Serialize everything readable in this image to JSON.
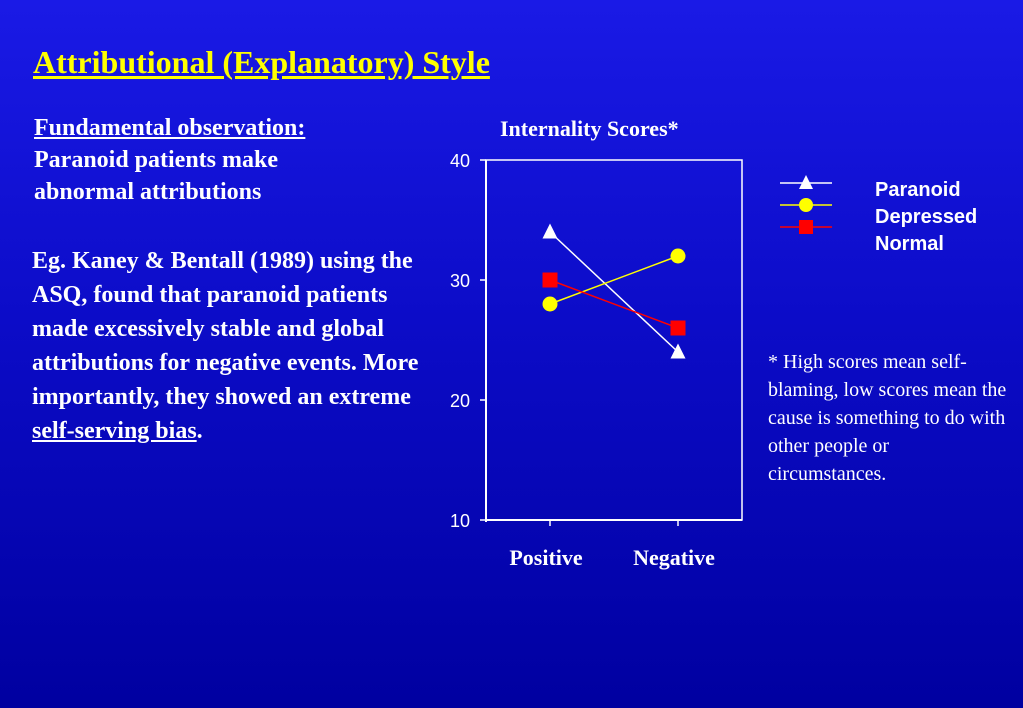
{
  "slide": {
    "title": "Attributional (Explanatory) Style",
    "fundamental_heading": "Fundamental observation:",
    "fundamental_line1": "Paranoid patients make",
    "fundamental_line2": "abnormal attributions",
    "body_text": "Eg. Kaney & Bentall (1989) using the ASQ, found that paranoid patients made excessively stable and global attributions for negative events. More importantly, they showed an extreme ",
    "body_underlined": "self-serving bias",
    "body_end": ".",
    "footnote": "* High scores mean self-blaming, low scores mean the cause is something to do with other people or circumstances."
  },
  "colors": {
    "background": "#0c0cc8",
    "title": "#ffff00",
    "paranoid": "#ffffff",
    "depressed": "#ffff00",
    "normal": "#ff0000"
  },
  "chart_data": {
    "type": "line",
    "title": "Internality Scores*",
    "categories": [
      "Positive",
      "Negative"
    ],
    "ylim": [
      10,
      40
    ],
    "yticks": [
      "10",
      "20",
      "30",
      "40"
    ],
    "legend_position": "top-right",
    "series": [
      {
        "name": "Paranoid",
        "values": [
          34,
          24
        ],
        "marker": "triangle",
        "color": "#ffffff"
      },
      {
        "name": "Depressed",
        "values": [
          28,
          32
        ],
        "marker": "circle",
        "color": "#ffff00"
      },
      {
        "name": "Normal",
        "values": [
          30,
          26
        ],
        "marker": "square",
        "color": "#ff0000"
      }
    ]
  }
}
